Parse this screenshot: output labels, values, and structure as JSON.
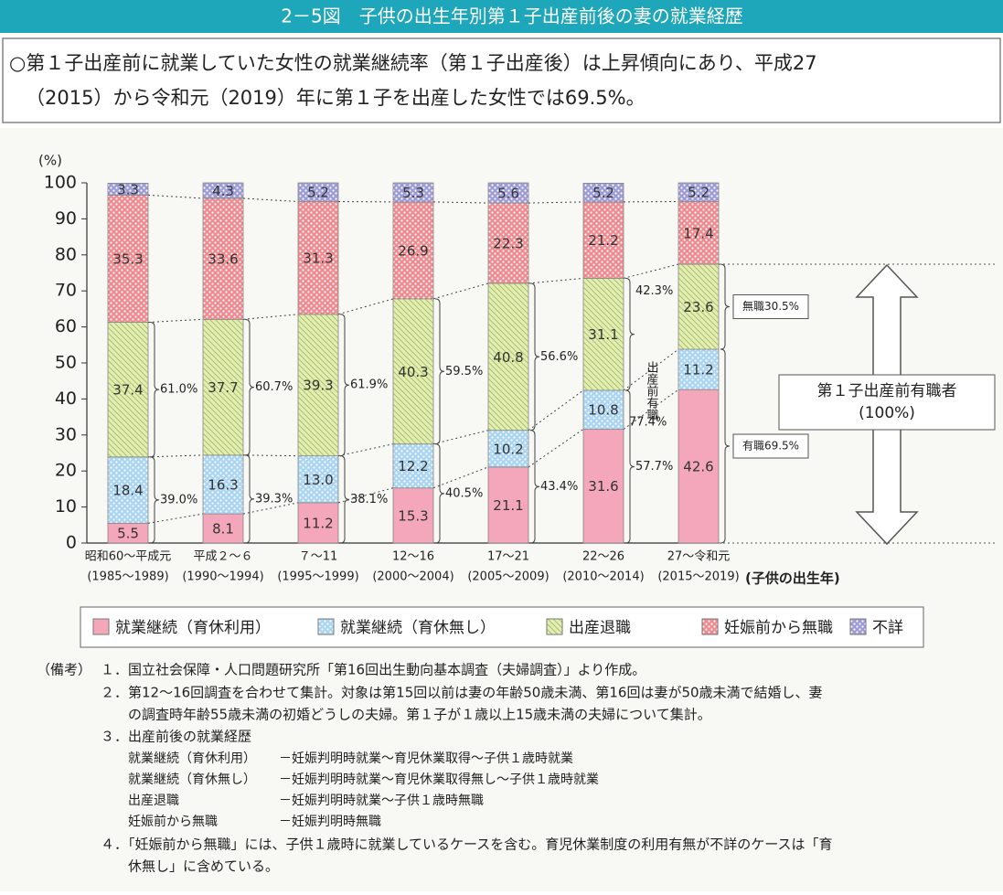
{
  "chart_data": {
    "type": "stacked_bar",
    "title": "2－5図　子供の出生年別第１子出産前後の妻の就業経歴",
    "subtitle": [
      "○第１子出産前に就業していた女性の就業継続率（第１子出産後）は上昇傾向にあり、平成27",
      "（2015）から令和元（2019）年に第１子を出産した女性では69.5%。"
    ],
    "y_label": "(%)",
    "x_label": "(子供の出生年)",
    "categories": [
      "昭和60～平成元",
      "平成２～６",
      "７～11",
      "12～16",
      "17～21",
      "22～26",
      "27～令和元"
    ],
    "category_years": [
      "(1985～1989)",
      "(1990～1994)",
      "(1995～1999)",
      "(2000～2004)",
      "(2005～2009)",
      "(2010～2014)",
      "(2015～2019)"
    ],
    "series": [
      {
        "name": "就業継続（育休利用）",
        "color": "#f4a7bb",
        "pattern": "solid",
        "values": [
          5.5,
          8.1,
          11.2,
          15.3,
          21.1,
          31.6,
          42.6
        ]
      },
      {
        "name": "就業継続（育休無し）",
        "color": "#a9d4f2",
        "pattern": "dots",
        "values": [
          18.4,
          16.3,
          13.0,
          12.2,
          10.2,
          10.8,
          11.2
        ],
        "value_labels": [
          "18.4",
          "16.3",
          "13.0",
          "12.2",
          "10.2",
          "10.8",
          "11.2"
        ]
      },
      {
        "name": "出産退職",
        "color": "#e3edb4",
        "pattern": "stripes",
        "values": [
          37.4,
          37.7,
          39.3,
          40.3,
          40.8,
          31.1,
          23.6
        ]
      },
      {
        "name": "妊娠前から無職",
        "color": "#ee8a8f",
        "pattern": "dots",
        "values": [
          35.3,
          33.6,
          31.3,
          26.9,
          22.3,
          21.2,
          17.4
        ]
      },
      {
        "name": "不詳",
        "color": "#9d9bd6",
        "pattern": "dots",
        "values": [
          3.3,
          4.3,
          5.2,
          5.3,
          5.6,
          5.2,
          5.2
        ]
      }
    ],
    "ylim": [
      0,
      100
    ],
    "yticks": [
      0,
      10,
      20,
      30,
      40,
      50,
      60,
      70,
      80,
      90,
      100
    ],
    "brace_labels_lower": [
      "39.0%",
      "39.3%",
      "38.1%",
      "40.5%",
      "43.4%",
      "57.7%",
      "有職69.5%"
    ],
    "brace_labels_upper": [
      "61.0%",
      "60.7%",
      "61.9%",
      "59.5%",
      "56.6%",
      "42.3%",
      "無職30.5%"
    ],
    "prior_employed_label": "出産前有職",
    "prior_employed_value": "77.4%",
    "arrow_box": [
      "第１子出産前有職者",
      "(100%)"
    ],
    "notes_label": "（備考）",
    "notes": [
      [
        "１．国立社会保障・人口問題研究所「第16回出生動向基本調査（夫婦調査）」より作成。"
      ],
      [
        "２．第12～16回調査を合わせて集計。対象は第15回以前は妻の年齢50歳未満、第16回は妻が50歳未満で結婚し、妻",
        "の調査時年齢55歳未満の初婚どうしの夫婦。第１子が１歳以上15歳未満の夫婦について集計。"
      ],
      [
        "３．出産前後の就業経歴"
      ],
      [
        "４．「妊娠前から無職」には、子供１歳時に就業しているケースを含む。育児休業制度の利用有無が不詳のケースは「育",
        "休無し」に含めている。"
      ]
    ],
    "definitions": [
      [
        "就業継続（育休利用）",
        "－妊娠判明時就業～育児休業取得～子供１歳時就業"
      ],
      [
        "就業継続（育休無し）",
        "－妊娠判明時就業～育児休業取得無し～子供１歳時就業"
      ],
      [
        "出産退職",
        "－妊娠判明時就業～子供１歳時無職"
      ],
      [
        "妊娠前から無職",
        "－妊娠判明時無職"
      ]
    ]
  }
}
